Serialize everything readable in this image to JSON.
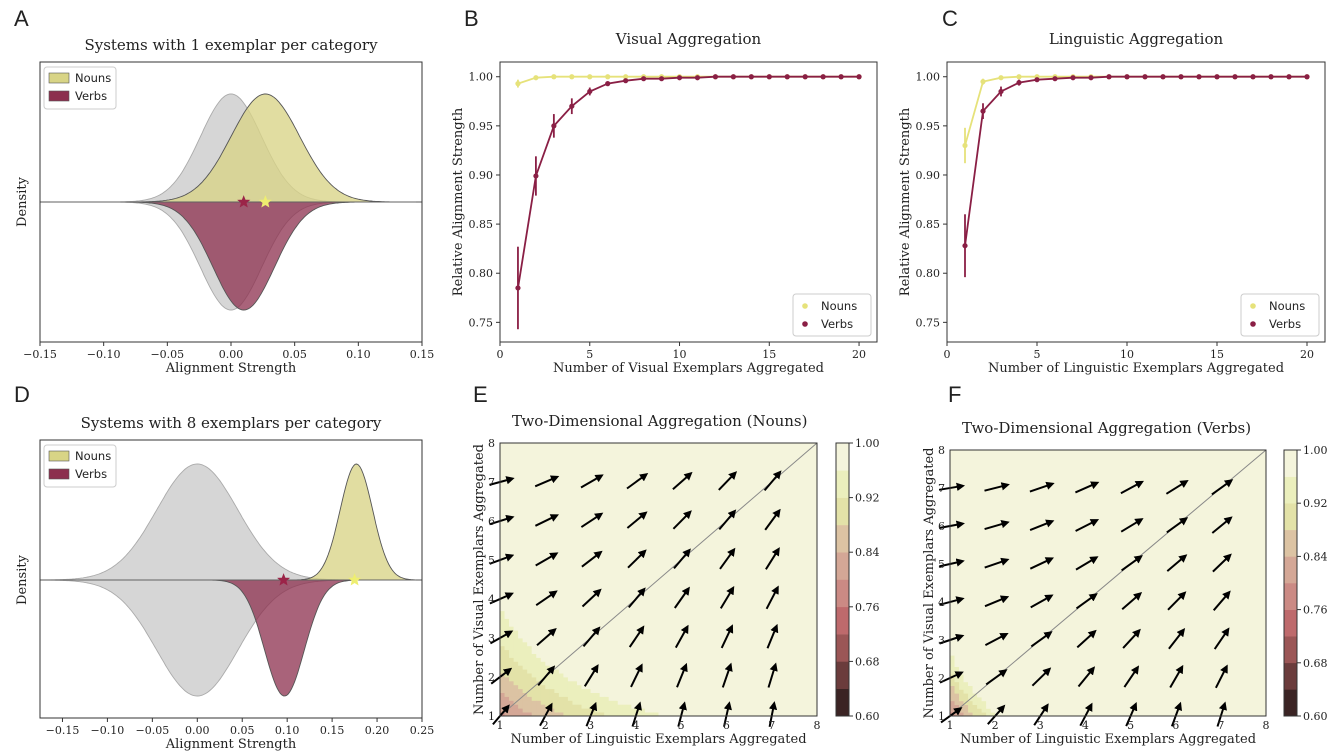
{
  "panel_letters": [
    "A",
    "B",
    "C",
    "D",
    "E",
    "F"
  ],
  "colors": {
    "nouns": "#d8d486",
    "verbs": "#8c2f4e",
    "gray": "#c8c8c8",
    "noun_line": "#e6e27a",
    "verb_line": "#8a1f45"
  },
  "chart_data": [
    {
      "id": "A",
      "type": "area",
      "title": "Systems with 1 exemplar per category",
      "xlabel": "Alignment Strength",
      "ylabel": "Density",
      "xlim": [
        -0.15,
        0.15
      ],
      "xticks": [
        -0.15,
        -0.1,
        -0.05,
        0.0,
        0.05,
        0.1,
        0.15
      ],
      "xtick_labels": [
        "−0.15",
        "−0.10",
        "−0.05",
        "0.00",
        "0.05",
        "0.10",
        "0.15"
      ],
      "legend": [
        "Nouns",
        "Verbs"
      ],
      "legend_position": "top-left",
      "series": [
        {
          "name": "Nouns",
          "side": "top",
          "mean": 0.027,
          "sd": 0.027
        },
        {
          "name": "Verbs",
          "side": "bottom",
          "mean": 0.01,
          "sd": 0.024
        }
      ],
      "null_distribution": {
        "mean": 0.0,
        "sd": 0.024
      },
      "markers": [
        {
          "series": "Verbs",
          "x": 0.01
        },
        {
          "series": "Nouns",
          "x": 0.027
        }
      ]
    },
    {
      "id": "B",
      "type": "line",
      "title": "Visual Aggregation",
      "xlabel": "Number of Visual Exemplars Aggregated",
      "ylabel": "Relative Alignment Strength",
      "xlim": [
        0,
        21
      ],
      "ylim": [
        0.73,
        1.015
      ],
      "xticks": [
        0,
        5,
        10,
        15,
        20
      ],
      "yticks": [
        0.75,
        0.8,
        0.85,
        0.9,
        0.95,
        1.0
      ],
      "ytick_labels": [
        "0.75",
        "0.80",
        "0.85",
        "0.90",
        "0.95",
        "1.00"
      ],
      "legend_position": "bottom-right",
      "x": [
        1,
        2,
        3,
        4,
        5,
        6,
        7,
        8,
        9,
        10,
        11,
        12,
        13,
        14,
        15,
        16,
        17,
        18,
        19,
        20
      ],
      "series": [
        {
          "name": "Nouns",
          "values": [
            0.993,
            0.999,
            1.0,
            1.0,
            1.0,
            1.0,
            1.0,
            1.0,
            1.0,
            1.0,
            1.0,
            1.0,
            1.0,
            1.0,
            1.0,
            1.0,
            1.0,
            1.0,
            1.0,
            1.0
          ],
          "errors": [
            0.004,
            0.001,
            0,
            0,
            0,
            0,
            0,
            0,
            0,
            0,
            0,
            0,
            0,
            0,
            0,
            0,
            0,
            0,
            0,
            0
          ]
        },
        {
          "name": "Verbs",
          "values": [
            0.785,
            0.899,
            0.95,
            0.97,
            0.985,
            0.993,
            0.996,
            0.998,
            0.998,
            0.999,
            0.999,
            1.0,
            1.0,
            1.0,
            1.0,
            1.0,
            1.0,
            1.0,
            1.0,
            1.0
          ],
          "errors": [
            0.042,
            0.02,
            0.012,
            0.008,
            0.004,
            0.002,
            0.001,
            0.001,
            0,
            0,
            0,
            0,
            0,
            0,
            0,
            0,
            0,
            0,
            0,
            0
          ]
        }
      ]
    },
    {
      "id": "C",
      "type": "line",
      "title": "Linguistic Aggregation",
      "xlabel": "Number of Linguistic Exemplars Aggregated",
      "ylabel": "Relative Alignment Strength",
      "xlim": [
        0,
        21
      ],
      "ylim": [
        0.73,
        1.015
      ],
      "xticks": [
        0,
        5,
        10,
        15,
        20
      ],
      "yticks": [
        0.75,
        0.8,
        0.85,
        0.9,
        0.95,
        1.0
      ],
      "ytick_labels": [
        "0.75",
        "0.80",
        "0.85",
        "0.90",
        "0.95",
        "1.00"
      ],
      "legend_position": "bottom-right",
      "x": [
        1,
        2,
        3,
        4,
        5,
        6,
        7,
        8,
        9,
        10,
        11,
        12,
        13,
        14,
        15,
        16,
        17,
        18,
        19,
        20
      ],
      "series": [
        {
          "name": "Nouns",
          "values": [
            0.93,
            0.995,
            0.999,
            1.0,
            1.0,
            1.0,
            1.0,
            1.0,
            1.0,
            1.0,
            1.0,
            1.0,
            1.0,
            1.0,
            1.0,
            1.0,
            1.0,
            1.0,
            1.0,
            1.0
          ],
          "errors": [
            0.018,
            0.003,
            0.001,
            0,
            0,
            0,
            0,
            0,
            0,
            0,
            0,
            0,
            0,
            0,
            0,
            0,
            0,
            0,
            0,
            0
          ]
        },
        {
          "name": "Verbs",
          "values": [
            0.828,
            0.965,
            0.985,
            0.994,
            0.997,
            0.998,
            0.999,
            0.999,
            1.0,
            1.0,
            1.0,
            1.0,
            1.0,
            1.0,
            1.0,
            1.0,
            1.0,
            1.0,
            1.0,
            1.0
          ],
          "errors": [
            0.032,
            0.008,
            0.005,
            0.003,
            0.001,
            0.001,
            0,
            0,
            0,
            0,
            0,
            0,
            0,
            0,
            0,
            0,
            0,
            0,
            0,
            0
          ]
        }
      ]
    },
    {
      "id": "D",
      "type": "area",
      "title": "Systems with 8 exemplars per category",
      "xlabel": "Alignment Strength",
      "ylabel": "Density",
      "xlim": [
        -0.175,
        0.25
      ],
      "xticks": [
        -0.15,
        -0.1,
        -0.05,
        0.0,
        0.05,
        0.1,
        0.15,
        0.2,
        0.25
      ],
      "xtick_labels": [
        "−0.15",
        "−0.10",
        "−0.05",
        "0.00",
        "0.05",
        "0.10",
        "0.15",
        "0.20",
        "0.25"
      ],
      "legend": [
        "Nouns",
        "Verbs"
      ],
      "legend_position": "top-left",
      "series": [
        {
          "name": "Nouns",
          "side": "top",
          "mean": 0.177,
          "sd": 0.018
        },
        {
          "name": "Verbs",
          "side": "bottom",
          "mean": 0.097,
          "sd": 0.022
        }
      ],
      "null_distribution": {
        "mean": 0.0,
        "sd": 0.045
      },
      "markers": [
        {
          "series": "Verbs",
          "x": 0.096
        },
        {
          "series": "Nouns",
          "x": 0.175
        }
      ]
    },
    {
      "id": "E",
      "type": "heatmap",
      "title": "Two-Dimensional Aggregation (Nouns)",
      "xlabel": "Number of Linguistic Exemplars Aggregated",
      "ylabel": "Number of Visual Exemplars Aggregated",
      "xlim": [
        1,
        8
      ],
      "ylim": [
        1,
        8
      ],
      "xticks": [
        1,
        2,
        3,
        4,
        5,
        6,
        7,
        8
      ],
      "yticks": [
        1,
        2,
        3,
        4,
        5,
        6,
        7,
        8
      ],
      "colorbar": {
        "min": 0.6,
        "max": 1.0,
        "ticks": [
          "0.60",
          "0.68",
          "0.76",
          "0.84",
          "0.92",
          "1.00"
        ]
      },
      "model": {
        "base": 0.58,
        "a": 0.11,
        "b": 0.13
      },
      "arrows_x": [
        1,
        2,
        3,
        4,
        5,
        6,
        7
      ],
      "arrows_y": [
        1,
        2,
        3,
        4,
        5,
        6,
        7
      ]
    },
    {
      "id": "F",
      "type": "heatmap",
      "title": "Two-Dimensional Aggregation (Verbs)",
      "xlabel": "Number of Linguistic Exemplars Aggregated",
      "ylabel": "Number of Visual Exemplars Aggregated",
      "xlim": [
        1,
        8
      ],
      "ylim": [
        1,
        8
      ],
      "xticks": [
        1,
        2,
        3,
        4,
        5,
        6,
        7,
        8
      ],
      "yticks": [
        1,
        2,
        3,
        4,
        5,
        6,
        7,
        8
      ],
      "colorbar": {
        "min": 0.6,
        "max": 1.0,
        "ticks": [
          "0.60",
          "0.68",
          "0.76",
          "0.84",
          "0.92",
          "1.00"
        ]
      },
      "model": {
        "base": 0.36,
        "a": 0.28,
        "b": 0.2
      },
      "arrows_x": [
        1,
        2,
        3,
        4,
        5,
        6,
        7
      ],
      "arrows_y": [
        1,
        2,
        3,
        4,
        5,
        6,
        7
      ]
    }
  ]
}
